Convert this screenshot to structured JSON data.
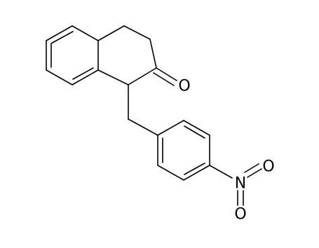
{
  "atoms": [
    "O",
    "N",
    "O",
    "O"
  ]
}
